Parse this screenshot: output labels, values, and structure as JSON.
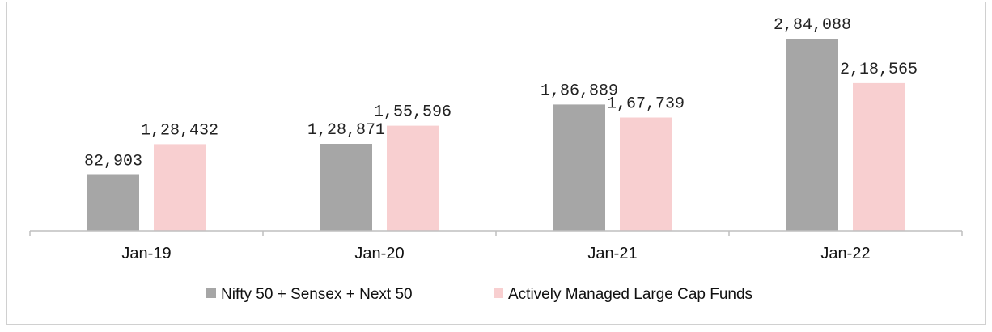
{
  "chart_data": {
    "type": "bar",
    "categories": [
      "Jan-19",
      "Jan-20",
      "Jan-21",
      "Jan-22"
    ],
    "series": [
      {
        "name": "Nifty 50 + Sensex + Next 50",
        "values": [
          82903,
          128871,
          186889,
          284088
        ],
        "labels": [
          "82,903",
          "1,28,871",
          "1,86,889",
          "2,84,088"
        ],
        "color": "#a6a6a6"
      },
      {
        "name": "Actively Managed Large Cap Funds",
        "values": [
          128432,
          155596,
          167739,
          218565
        ],
        "labels": [
          "1,28,432",
          "1,55,596",
          "1,67,739",
          "2,18,565"
        ],
        "color": "#f8cfd0"
      }
    ],
    "ylim": [
      0,
      300000
    ],
    "grid": false,
    "legend_position": "bottom"
  }
}
